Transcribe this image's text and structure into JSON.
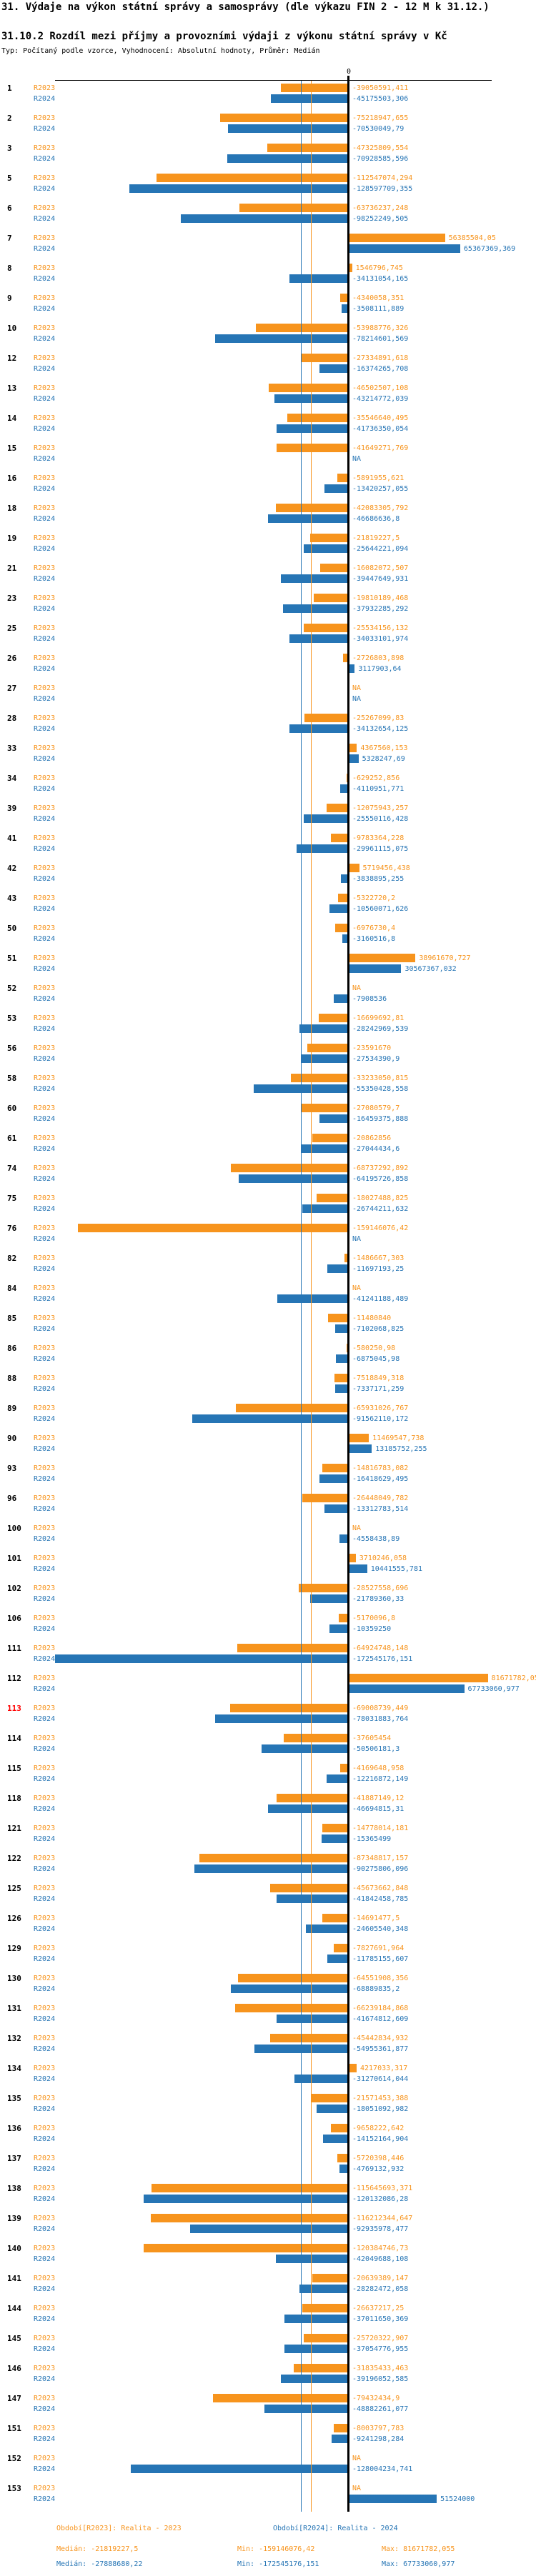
{
  "header": {
    "title": "31. Výdaje na výkon státní správy a samosprávy (dle výkazu FIN 2 - 12 M k 31.12.)",
    "subtitle": "31.10.2 Rozdíl mezi příjmy a provozními výdaji z výkonu státní správy v Kč",
    "meta": "Typ: Počítaný podle vzorce, Vyhodnocení: Absolutní hodnoty, Průměr: Medián"
  },
  "chart_data": {
    "type": "bar",
    "orientation": "horizontal",
    "unit": "Kč",
    "axis": {
      "zero_label": "0"
    },
    "legend_position": "bottom",
    "series_names": [
      "R2023",
      "R2024"
    ],
    "colors": {
      "R2023": "#f7941d",
      "R2024": "#2675b5",
      "axis": "#000000",
      "highlight": "#ff0000"
    },
    "na_text": "NA",
    "rows": [
      {
        "id": "1",
        "highlight": false,
        "values": {
          "R2023": "-39050591,411",
          "R2024": "-45175503,306"
        }
      },
      {
        "id": "2",
        "highlight": false,
        "values": {
          "R2023": "-75218947,655",
          "R2024": "-70530049,79"
        }
      },
      {
        "id": "3",
        "highlight": false,
        "values": {
          "R2023": "-47325809,554",
          "R2024": "-70928585,596"
        }
      },
      {
        "id": "5",
        "highlight": false,
        "values": {
          "R2023": "-112547074,294",
          "R2024": "-128597709,355"
        }
      },
      {
        "id": "6",
        "highlight": false,
        "values": {
          "R2023": "-63736237,248",
          "R2024": "-98252249,505"
        }
      },
      {
        "id": "7",
        "highlight": false,
        "values": {
          "R2023": "56385504,05",
          "R2024": "65367369,369"
        }
      },
      {
        "id": "8",
        "highlight": false,
        "values": {
          "R2023": "1546796,745",
          "R2024": "-34131054,165"
        }
      },
      {
        "id": "9",
        "highlight": false,
        "values": {
          "R2023": "-4340058,351",
          "R2024": "-3508111,889"
        }
      },
      {
        "id": "10",
        "highlight": false,
        "values": {
          "R2023": "-53988776,326",
          "R2024": "-78214601,569"
        }
      },
      {
        "id": "12",
        "highlight": false,
        "values": {
          "R2023": "-27334891,618",
          "R2024": "-16374265,708"
        }
      },
      {
        "id": "13",
        "highlight": false,
        "values": {
          "R2023": "-46502507,108",
          "R2024": "-43214772,039"
        }
      },
      {
        "id": "14",
        "highlight": false,
        "values": {
          "R2023": "-35546640,495",
          "R2024": "-41736350,054"
        }
      },
      {
        "id": "15",
        "highlight": false,
        "values": {
          "R2023": "-41649271,769",
          "R2024": "NA"
        }
      },
      {
        "id": "16",
        "highlight": false,
        "values": {
          "R2023": "-5891955,621",
          "R2024": "-13420257,055"
        }
      },
      {
        "id": "18",
        "highlight": false,
        "values": {
          "R2023": "-42083305,792",
          "R2024": "-46686636,8"
        }
      },
      {
        "id": "19",
        "highlight": false,
        "values": {
          "R2023": "-21819227,5",
          "R2024": "-25644221,094"
        }
      },
      {
        "id": "21",
        "highlight": false,
        "values": {
          "R2023": "-16082072,507",
          "R2024": "-39447649,931"
        }
      },
      {
        "id": "23",
        "highlight": false,
        "values": {
          "R2023": "-19810189,468",
          "R2024": "-37932285,292"
        }
      },
      {
        "id": "25",
        "highlight": false,
        "values": {
          "R2023": "-25534156,132",
          "R2024": "-34033101,974"
        }
      },
      {
        "id": "26",
        "highlight": false,
        "values": {
          "R2023": "-2726803,898",
          "R2024": "3117903,64"
        }
      },
      {
        "id": "27",
        "highlight": false,
        "values": {
          "R2023": "NA",
          "R2024": "NA"
        }
      },
      {
        "id": "28",
        "highlight": false,
        "values": {
          "R2023": "-25267099,83",
          "R2024": "-34132654,125"
        }
      },
      {
        "id": "33",
        "highlight": false,
        "values": {
          "R2023": "4367560,153",
          "R2024": "5328247,69"
        }
      },
      {
        "id": "34",
        "highlight": false,
        "values": {
          "R2023": "-629252,856",
          "R2024": "-4110951,771"
        }
      },
      {
        "id": "39",
        "highlight": false,
        "values": {
          "R2023": "-12075943,257",
          "R2024": "-25550116,428"
        }
      },
      {
        "id": "41",
        "highlight": false,
        "values": {
          "R2023": "-9783364,228",
          "R2024": "-29961115,075"
        }
      },
      {
        "id": "42",
        "highlight": false,
        "values": {
          "R2023": "5719456,438",
          "R2024": "-3838895,255"
        }
      },
      {
        "id": "43",
        "highlight": false,
        "values": {
          "R2023": "-5322720,2",
          "R2024": "-10560071,626"
        }
      },
      {
        "id": "50",
        "highlight": false,
        "values": {
          "R2023": "-6976730,4",
          "R2024": "-3160516,8"
        }
      },
      {
        "id": "51",
        "highlight": false,
        "values": {
          "R2023": "38961670,727",
          "R2024": "30567367,032"
        }
      },
      {
        "id": "52",
        "highlight": false,
        "values": {
          "R2023": "NA",
          "R2024": "-7908536"
        }
      },
      {
        "id": "53",
        "highlight": false,
        "values": {
          "R2023": "-16699692,81",
          "R2024": "-28242969,539"
        }
      },
      {
        "id": "56",
        "highlight": false,
        "values": {
          "R2023": "-23591670",
          "R2024": "-27534390,9"
        }
      },
      {
        "id": "58",
        "highlight": false,
        "values": {
          "R2023": "-33233050,815",
          "R2024": "-55350428,558"
        }
      },
      {
        "id": "60",
        "highlight": false,
        "values": {
          "R2023": "-27080579,7",
          "R2024": "-16459375,888"
        }
      },
      {
        "id": "61",
        "highlight": false,
        "values": {
          "R2023": "-20862856",
          "R2024": "-27044434,6"
        }
      },
      {
        "id": "74",
        "highlight": false,
        "values": {
          "R2023": "-68737292,892",
          "R2024": "-64195726,858"
        }
      },
      {
        "id": "75",
        "highlight": false,
        "values": {
          "R2023": "-18027488,825",
          "R2024": "-26744211,632"
        }
      },
      {
        "id": "76",
        "highlight": false,
        "values": {
          "R2023": "-159146076,42",
          "R2024": "NA"
        }
      },
      {
        "id": "82",
        "highlight": false,
        "values": {
          "R2023": "-1486667,303",
          "R2024": "-11697193,25"
        }
      },
      {
        "id": "84",
        "highlight": false,
        "values": {
          "R2023": "NA",
          "R2024": "-41241188,489"
        }
      },
      {
        "id": "85",
        "highlight": false,
        "values": {
          "R2023": "-11480840",
          "R2024": "-7102068,825"
        }
      },
      {
        "id": "86",
        "highlight": false,
        "values": {
          "R2023": "-580250,98",
          "R2024": "-6875045,98"
        }
      },
      {
        "id": "88",
        "highlight": false,
        "values": {
          "R2023": "-7518849,318",
          "R2024": "-7337171,259"
        }
      },
      {
        "id": "89",
        "highlight": false,
        "values": {
          "R2023": "-65931026,767",
          "R2024": "-91562110,172"
        }
      },
      {
        "id": "90",
        "highlight": false,
        "values": {
          "R2023": "11469547,738",
          "R2024": "13185752,255"
        }
      },
      {
        "id": "93",
        "highlight": false,
        "values": {
          "R2023": "-14816783,082",
          "R2024": "-16418629,495"
        }
      },
      {
        "id": "96",
        "highlight": false,
        "values": {
          "R2023": "-26448049,782",
          "R2024": "-13312783,514"
        }
      },
      {
        "id": "100",
        "highlight": false,
        "values": {
          "R2023": "NA",
          "R2024": "-4558438,89"
        }
      },
      {
        "id": "101",
        "highlight": false,
        "values": {
          "R2023": "3710246,058",
          "R2024": "10441555,781"
        }
      },
      {
        "id": "102",
        "highlight": false,
        "values": {
          "R2023": "-28527558,696",
          "R2024": "-21789360,33"
        }
      },
      {
        "id": "106",
        "highlight": false,
        "values": {
          "R2023": "-5170096,8",
          "R2024": "-10359250"
        }
      },
      {
        "id": "111",
        "highlight": false,
        "values": {
          "R2023": "-64924748,148",
          "R2024": "-172545176,151"
        }
      },
      {
        "id": "112",
        "highlight": false,
        "values": {
          "R2023": "81671782,055",
          "R2024": "67733060,977"
        }
      },
      {
        "id": "113",
        "highlight": true,
        "values": {
          "R2023": "-69008739,449",
          "R2024": "-78031883,764"
        }
      },
      {
        "id": "114",
        "highlight": false,
        "values": {
          "R2023": "-37605454",
          "R2024": "-50506181,3"
        }
      },
      {
        "id": "115",
        "highlight": false,
        "values": {
          "R2023": "-4169648,958",
          "R2024": "-12216872,149"
        }
      },
      {
        "id": "118",
        "highlight": false,
        "values": {
          "R2023": "-41887149,12",
          "R2024": "-46694815,31"
        }
      },
      {
        "id": "121",
        "highlight": false,
        "values": {
          "R2023": "-14778014,181",
          "R2024": "-15365499"
        }
      },
      {
        "id": "122",
        "highlight": false,
        "values": {
          "R2023": "-87348817,157",
          "R2024": "-90275806,096"
        }
      },
      {
        "id": "125",
        "highlight": false,
        "values": {
          "R2023": "-45673662,848",
          "R2024": "-41842458,785"
        }
      },
      {
        "id": "126",
        "highlight": false,
        "values": {
          "R2023": "-14691477,5",
          "R2024": "-24605540,348"
        }
      },
      {
        "id": "129",
        "highlight": false,
        "values": {
          "R2023": "-7827691,964",
          "R2024": "-11785155,607"
        }
      },
      {
        "id": "130",
        "highlight": false,
        "values": {
          "R2023": "-64551908,356",
          "R2024": "-68889835,2"
        }
      },
      {
        "id": "131",
        "highlight": false,
        "values": {
          "R2023": "-66239184,868",
          "R2024": "-41674812,609"
        }
      },
      {
        "id": "132",
        "highlight": false,
        "values": {
          "R2023": "-45442834,932",
          "R2024": "-54955361,877"
        }
      },
      {
        "id": "134",
        "highlight": false,
        "values": {
          "R2023": "4217033,317",
          "R2024": "-31270614,044"
        }
      },
      {
        "id": "135",
        "highlight": false,
        "values": {
          "R2023": "-21571453,388",
          "R2024": "-18051092,982"
        }
      },
      {
        "id": "136",
        "highlight": false,
        "values": {
          "R2023": "-9658222,642",
          "R2024": "-14152164,904"
        }
      },
      {
        "id": "137",
        "highlight": false,
        "values": {
          "R2023": "-5720398,446",
          "R2024": "-4769132,932"
        }
      },
      {
        "id": "138",
        "highlight": false,
        "values": {
          "R2023": "-115645693,371",
          "R2024": "-120132086,28"
        }
      },
      {
        "id": "139",
        "highlight": false,
        "values": {
          "R2023": "-116212344,647",
          "R2024": "-92935978,477"
        }
      },
      {
        "id": "140",
        "highlight": false,
        "values": {
          "R2023": "-120384746,73",
          "R2024": "-42049688,108"
        }
      },
      {
        "id": "141",
        "highlight": false,
        "values": {
          "R2023": "-20639389,147",
          "R2024": "-28282472,058"
        }
      },
      {
        "id": "144",
        "highlight": false,
        "values": {
          "R2023": "-26637217,25",
          "R2024": "-37011650,369"
        }
      },
      {
        "id": "145",
        "highlight": false,
        "values": {
          "R2023": "-25720322,907",
          "R2024": "-37054776,955"
        }
      },
      {
        "id": "146",
        "highlight": false,
        "values": {
          "R2023": "-31835433,463",
          "R2024": "-39196052,585"
        }
      },
      {
        "id": "147",
        "highlight": false,
        "values": {
          "R2023": "-79432434,9",
          "R2024": "-48882261,077"
        }
      },
      {
        "id": "151",
        "highlight": false,
        "values": {
          "R2023": "-8003797,783",
          "R2024": "-9241298,284"
        }
      },
      {
        "id": "152",
        "highlight": false,
        "values": {
          "R2023": "NA",
          "R2024": "-128004234,741"
        }
      },
      {
        "id": "153",
        "highlight": false,
        "values": {
          "R2023": "NA",
          "R2024": "51524000"
        }
      }
    ]
  },
  "footer": {
    "periods": [
      {
        "label": "Období[R2023]:",
        "value": "Realita - 2023"
      },
      {
        "label": "Období[R2024]:",
        "value": "Realita - 2024"
      }
    ],
    "stats": [
      {
        "series": "R2023",
        "median_label": "Medián:",
        "median": "-21819227,5",
        "min_label": "Min:",
        "min": "-159146076,42",
        "max_label": "Max:",
        "max": "81671782,055"
      },
      {
        "series": "R2024",
        "median_label": "Medián:",
        "median": "-27888680,22",
        "min_label": "Min:",
        "min": "-172545176,151",
        "max_label": "Max:",
        "max": "67733060,977"
      }
    ]
  }
}
